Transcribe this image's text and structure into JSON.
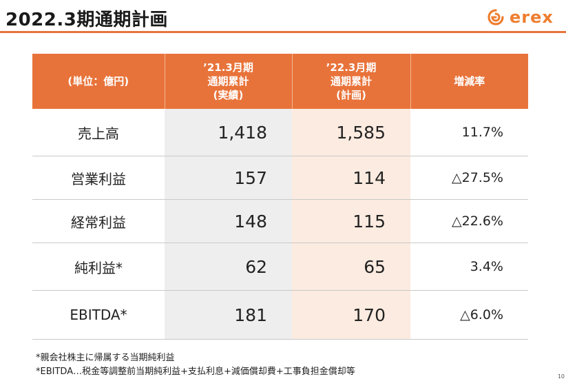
{
  "page_title": "2022.3期通期計画",
  "logo": {
    "text": "erex",
    "icon": "erex-swirl-logo-icon",
    "brand_color": "#ee7d2f"
  },
  "colors": {
    "header_bg": "#e8733a",
    "col_2021_bg": "#eeeeee",
    "col_2022_bg": "#fcebe0"
  },
  "table": {
    "headers": [
      {
        "lines": [
          "(単位：億円)"
        ]
      },
      {
        "lines": [
          "’21.3月期",
          "通期累計",
          "(実績)"
        ]
      },
      {
        "lines": [
          "’22.3月期",
          "通期累計",
          "(計画)"
        ]
      },
      {
        "lines": [
          "増減率"
        ]
      }
    ],
    "rows": [
      {
        "label": "売上高",
        "fy2021": "1,418",
        "fy2022": "1,585",
        "change": "11.7%"
      },
      {
        "label": "営業利益",
        "fy2021": "157",
        "fy2022": "114",
        "change": "△27.5%"
      },
      {
        "label": "経常利益",
        "fy2021": "148",
        "fy2022": "115",
        "change": "△22.6%"
      },
      {
        "label": "純利益*",
        "fy2021": "62",
        "fy2022": "65",
        "change": "3.4%"
      },
      {
        "label": "EBITDA*",
        "fy2021": "181",
        "fy2022": "170",
        "change": "△6.0%"
      }
    ]
  },
  "notes": [
    "*親会社株主に帰属する当期純利益",
    "*EBITDA…税金等調整前当期純利益+支払利息+減価償却費+工事負担金償却等"
  ],
  "page_number": "10"
}
